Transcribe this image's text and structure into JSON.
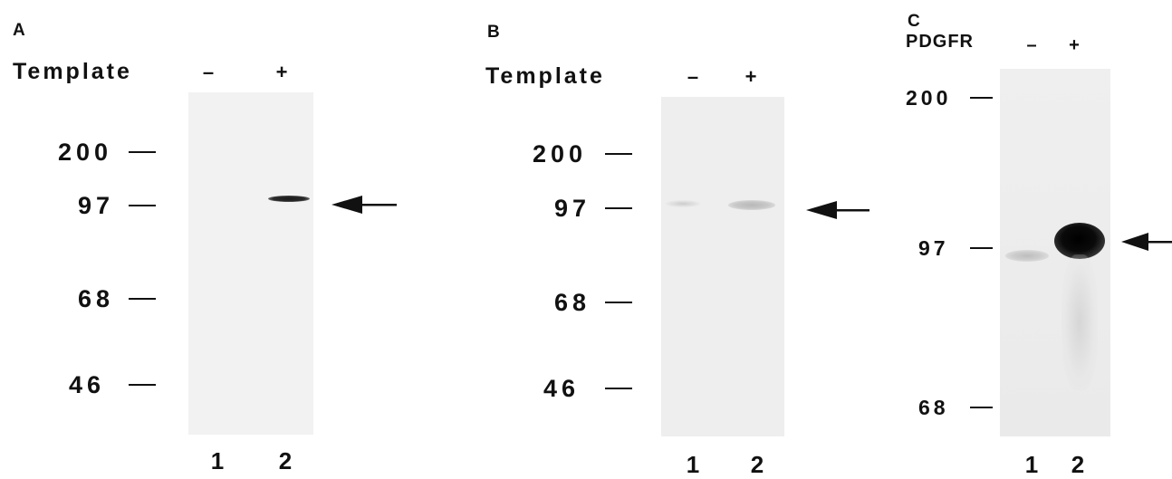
{
  "panels": [
    {
      "letter": "A",
      "condition_label": "Template",
      "minus_label": "–",
      "plus_label": "+",
      "markers": [
        "200",
        "97",
        "68",
        "46"
      ],
      "lanes": [
        "1",
        "2"
      ]
    },
    {
      "letter": "B",
      "condition_label": "Template",
      "minus_label": "–",
      "plus_label": "+",
      "markers": [
        "200",
        "97",
        "68",
        "46"
      ],
      "lanes": [
        "1",
        "2"
      ]
    },
    {
      "letter": "C",
      "condition_label": "PDGFR",
      "minus_label": "–",
      "plus_label": "+",
      "markers": [
        "200",
        "97",
        "68"
      ],
      "lanes": [
        "1",
        "2"
      ]
    }
  ],
  "icons": {
    "arrow": "left-arrow-icon"
  }
}
